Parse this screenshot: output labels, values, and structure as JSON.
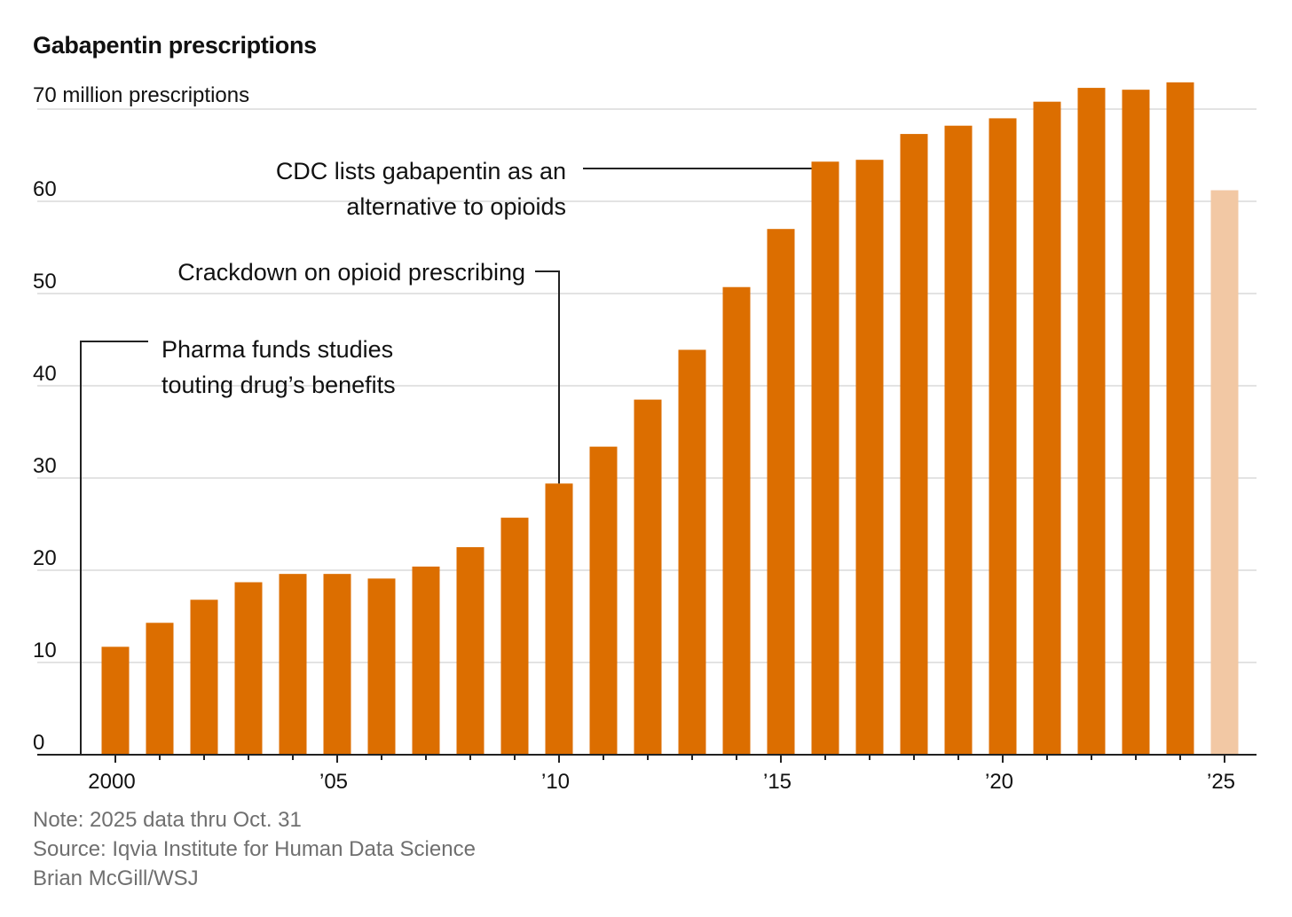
{
  "chart_data": {
    "type": "bar",
    "title": "Gabapentin prescriptions",
    "unit_label": "70 million prescriptions",
    "xlabel": "",
    "ylabel": "",
    "ylim": [
      0,
      70
    ],
    "yticks": [
      0,
      10,
      20,
      30,
      40,
      50,
      60,
      70
    ],
    "ytick_labels": [
      "0",
      "10",
      "20",
      "30",
      "40",
      "50",
      "60",
      ""
    ],
    "categories": [
      2000,
      2001,
      2002,
      2003,
      2004,
      2005,
      2006,
      2007,
      2008,
      2009,
      2010,
      2011,
      2012,
      2013,
      2014,
      2015,
      2016,
      2017,
      2018,
      2019,
      2020,
      2021,
      2022,
      2023,
      2024,
      2025
    ],
    "xtick_labels": [
      {
        "year": 2000,
        "label": "2000"
      },
      {
        "year": 2005,
        "label": "’05"
      },
      {
        "year": 2010,
        "label": "’10"
      },
      {
        "year": 2015,
        "label": "’15"
      },
      {
        "year": 2020,
        "label": "’20"
      },
      {
        "year": 2025,
        "label": "’25"
      }
    ],
    "series": [
      {
        "name": "Gabapentin prescriptions (millions)",
        "values": [
          11.7,
          14.3,
          16.8,
          18.7,
          19.6,
          19.6,
          19.1,
          20.4,
          22.5,
          25.7,
          29.4,
          33.4,
          38.5,
          43.9,
          50.7,
          57.0,
          64.3,
          64.5,
          67.3,
          68.2,
          69.0,
          70.8,
          72.3,
          72.1,
          72.9,
          61.2
        ]
      }
    ],
    "partial_year": 2025,
    "annotations": [
      {
        "year": 2000,
        "lines": [
          "Pharma funds studies",
          "touting drug’s benefits"
        ]
      },
      {
        "year": 2010,
        "lines": [
          "Crackdown on opioid prescribing"
        ]
      },
      {
        "year": 2016,
        "lines": [
          "CDC lists gabapentin as an",
          "alternative to opioids"
        ]
      }
    ]
  },
  "colors": {
    "bar": "#DC6E00",
    "bar_partial": "#F2C8A4",
    "grid": "#E3E3E3",
    "axis": "#222222",
    "text": "#111111",
    "footer": "#6F6F6F"
  },
  "footer": {
    "note": "Note: 2025 data thru Oct. 31",
    "source": "Source: Iqvia Institute for Human Data Science",
    "credit": "Brian McGill/WSJ"
  }
}
